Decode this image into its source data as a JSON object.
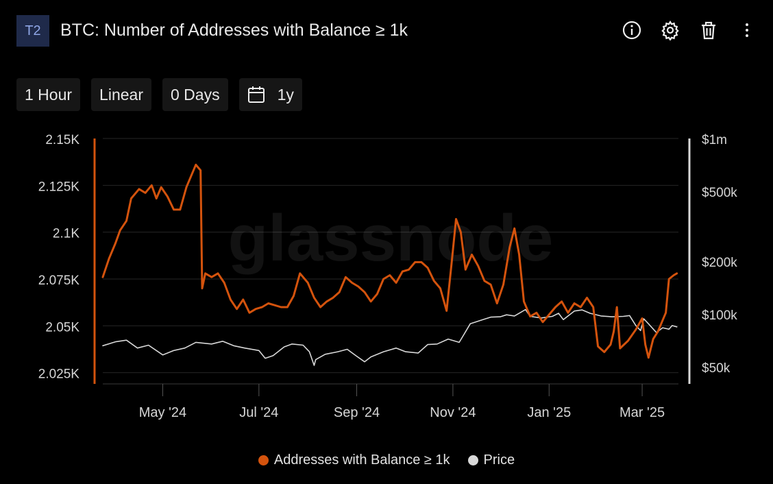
{
  "header": {
    "badge": "T2",
    "title": "BTC: Number of Addresses with Balance ≥ 1k",
    "icons": [
      "info-icon",
      "gear-icon",
      "trash-icon",
      "more-vertical-icon"
    ]
  },
  "toolbar": {
    "resolution": "1 Hour",
    "scale": "Linear",
    "moving_average": "0 Days",
    "range": "1y",
    "range_icon": "calendar-icon"
  },
  "colors": {
    "addresses": "#d4530d",
    "price": "#d8d8d8",
    "grid": "#262626",
    "background": "#000000"
  },
  "chart_data": {
    "type": "line",
    "title": "BTC: Number of Addresses with Balance ≥ 1k",
    "watermark": "glassnode",
    "x_ticks": [
      "May '24",
      "Jul '24",
      "Sep '24",
      "Nov '24",
      "Jan '25",
      "Mar '25"
    ],
    "x_range": [
      "2024-03-24",
      "2025-03-24"
    ],
    "y_left": {
      "ticks": [
        "2.15K",
        "2.125K",
        "2.1K",
        "2.075K",
        "2.05K",
        "2.025K"
      ],
      "range": [
        2019,
        2150
      ]
    },
    "y_right": {
      "scale": "log",
      "ticks": [
        "$1m",
        "$500k",
        "$200k",
        "$100k",
        "$50k"
      ],
      "range": [
        40000,
        1000000
      ]
    },
    "grid": true,
    "legend_position": "bottom",
    "series": [
      {
        "name": "Addresses with Balance ≥ 1k",
        "axis": "left",
        "points": [
          [
            "2024-03-24",
            2076
          ],
          [
            "2024-03-28",
            2086
          ],
          [
            "2024-04-01",
            2094
          ],
          [
            "2024-04-04",
            2101
          ],
          [
            "2024-04-08",
            2106
          ],
          [
            "2024-04-11",
            2118
          ],
          [
            "2024-04-16",
            2123
          ],
          [
            "2024-04-20",
            2121
          ],
          [
            "2024-04-24",
            2125
          ],
          [
            "2024-04-27",
            2118
          ],
          [
            "2024-04-30",
            2124
          ],
          [
            "2024-05-04",
            2119
          ],
          [
            "2024-05-08",
            2112
          ],
          [
            "2024-05-12",
            2112
          ],
          [
            "2024-05-16",
            2124
          ],
          [
            "2024-05-19",
            2130
          ],
          [
            "2024-05-22",
            2136
          ],
          [
            "2024-05-25",
            2133
          ],
          [
            "2024-05-26",
            2070
          ],
          [
            "2024-05-28",
            2078
          ],
          [
            "2024-06-01",
            2076
          ],
          [
            "2024-06-05",
            2078
          ],
          [
            "2024-06-09",
            2073
          ],
          [
            "2024-06-13",
            2064
          ],
          [
            "2024-06-17",
            2059
          ],
          [
            "2024-06-21",
            2064
          ],
          [
            "2024-06-25",
            2057
          ],
          [
            "2024-06-29",
            2059
          ],
          [
            "2024-07-03",
            2060
          ],
          [
            "2024-07-07",
            2062
          ],
          [
            "2024-07-11",
            2061
          ],
          [
            "2024-07-15",
            2060
          ],
          [
            "2024-07-19",
            2060
          ],
          [
            "2024-07-23",
            2066
          ],
          [
            "2024-07-27",
            2078
          ],
          [
            "2024-08-01",
            2073
          ],
          [
            "2024-08-05",
            2065
          ],
          [
            "2024-08-09",
            2060
          ],
          [
            "2024-08-13",
            2063
          ],
          [
            "2024-08-17",
            2065
          ],
          [
            "2024-08-21",
            2068
          ],
          [
            "2024-08-25",
            2076
          ],
          [
            "2024-08-29",
            2073
          ],
          [
            "2024-09-02",
            2071
          ],
          [
            "2024-09-06",
            2068
          ],
          [
            "2024-09-10",
            2063
          ],
          [
            "2024-09-14",
            2067
          ],
          [
            "2024-09-18",
            2075
          ],
          [
            "2024-09-22",
            2077
          ],
          [
            "2024-09-26",
            2073
          ],
          [
            "2024-09-30",
            2079
          ],
          [
            "2024-10-04",
            2080
          ],
          [
            "2024-10-08",
            2084
          ],
          [
            "2024-10-12",
            2084
          ],
          [
            "2024-10-16",
            2081
          ],
          [
            "2024-10-20",
            2074
          ],
          [
            "2024-10-24",
            2070
          ],
          [
            "2024-10-28",
            2058
          ],
          [
            "2024-10-31",
            2082
          ],
          [
            "2024-11-03",
            2107
          ],
          [
            "2024-11-06",
            2100
          ],
          [
            "2024-11-09",
            2080
          ],
          [
            "2024-11-13",
            2088
          ],
          [
            "2024-11-17",
            2082
          ],
          [
            "2024-11-21",
            2074
          ],
          [
            "2024-11-25",
            2072
          ],
          [
            "2024-11-29",
            2062
          ],
          [
            "2024-12-03",
            2072
          ],
          [
            "2024-12-07",
            2092
          ],
          [
            "2024-12-10",
            2102
          ],
          [
            "2024-12-13",
            2088
          ],
          [
            "2024-12-16",
            2063
          ],
          [
            "2024-12-20",
            2055
          ],
          [
            "2024-12-24",
            2057
          ],
          [
            "2024-12-28",
            2052
          ],
          [
            "2025-01-01",
            2056
          ],
          [
            "2025-01-05",
            2060
          ],
          [
            "2025-01-09",
            2063
          ],
          [
            "2025-01-13",
            2057
          ],
          [
            "2025-01-17",
            2062
          ],
          [
            "2025-01-21",
            2060
          ],
          [
            "2025-01-25",
            2065
          ],
          [
            "2025-01-29",
            2060
          ],
          [
            "2025-02-01",
            2039
          ],
          [
            "2025-02-05",
            2036
          ],
          [
            "2025-02-09",
            2040
          ],
          [
            "2025-02-11",
            2047
          ],
          [
            "2025-02-13",
            2060
          ],
          [
            "2025-02-15",
            2038
          ],
          [
            "2025-02-20",
            2042
          ],
          [
            "2025-02-25",
            2048
          ],
          [
            "2025-03-01",
            2054
          ],
          [
            "2025-03-03",
            2040
          ],
          [
            "2025-03-05",
            2033
          ],
          [
            "2025-03-08",
            2043
          ],
          [
            "2025-03-11",
            2047
          ],
          [
            "2025-03-14",
            2053
          ],
          [
            "2025-03-16",
            2057
          ],
          [
            "2025-03-18",
            2075
          ],
          [
            "2025-03-21",
            2077
          ],
          [
            "2025-03-23",
            2078
          ]
        ]
      },
      {
        "name": "Price",
        "axis": "right",
        "points": [
          [
            "2024-03-24",
            66000
          ],
          [
            "2024-04-01",
            69500
          ],
          [
            "2024-04-08",
            71000
          ],
          [
            "2024-04-15",
            64000
          ],
          [
            "2024-04-22",
            66500
          ],
          [
            "2024-05-01",
            58500
          ],
          [
            "2024-05-08",
            62000
          ],
          [
            "2024-05-15",
            64000
          ],
          [
            "2024-05-22",
            69000
          ],
          [
            "2024-06-01",
            67500
          ],
          [
            "2024-06-08",
            70000
          ],
          [
            "2024-06-15",
            66000
          ],
          [
            "2024-06-22",
            64000
          ],
          [
            "2024-07-01",
            62000
          ],
          [
            "2024-07-05",
            56000
          ],
          [
            "2024-07-10",
            58000
          ],
          [
            "2024-07-17",
            65000
          ],
          [
            "2024-07-22",
            67500
          ],
          [
            "2024-07-29",
            66500
          ],
          [
            "2024-08-02",
            61000
          ],
          [
            "2024-08-05",
            51000
          ],
          [
            "2024-08-06",
            55000
          ],
          [
            "2024-08-12",
            59000
          ],
          [
            "2024-08-20",
            61000
          ],
          [
            "2024-08-26",
            63000
          ],
          [
            "2024-09-01",
            57500
          ],
          [
            "2024-09-06",
            53500
          ],
          [
            "2024-09-10",
            57000
          ],
          [
            "2024-09-18",
            61000
          ],
          [
            "2024-09-26",
            64000
          ],
          [
            "2024-10-02",
            61000
          ],
          [
            "2024-10-10",
            60000
          ],
          [
            "2024-10-16",
            67000
          ],
          [
            "2024-10-22",
            67500
          ],
          [
            "2024-10-29",
            72000
          ],
          [
            "2024-11-05",
            69000
          ],
          [
            "2024-11-08",
            76500
          ],
          [
            "2024-11-12",
            88000
          ],
          [
            "2024-11-16",
            90500
          ],
          [
            "2024-11-20",
            93000
          ],
          [
            "2024-11-25",
            96000
          ],
          [
            "2024-12-01",
            96500
          ],
          [
            "2024-12-05",
            99000
          ],
          [
            "2024-12-10",
            97500
          ],
          [
            "2024-12-17",
            106000
          ],
          [
            "2024-12-20",
            97000
          ],
          [
            "2024-12-27",
            95000
          ],
          [
            "2025-01-03",
            97000
          ],
          [
            "2025-01-07",
            101000
          ],
          [
            "2025-01-10",
            93000
          ],
          [
            "2025-01-17",
            104000
          ],
          [
            "2025-01-22",
            105500
          ],
          [
            "2025-01-27",
            101000
          ],
          [
            "2025-02-03",
            97500
          ],
          [
            "2025-02-10",
            96500
          ],
          [
            "2025-02-17",
            97000
          ],
          [
            "2025-02-21",
            98000
          ],
          [
            "2025-02-25",
            86000
          ],
          [
            "2025-02-28",
            80500
          ],
          [
            "2025-03-02",
            94000
          ],
          [
            "2025-03-05",
            88000
          ],
          [
            "2025-03-10",
            78500
          ],
          [
            "2025-03-14",
            83500
          ],
          [
            "2025-03-18",
            82000
          ],
          [
            "2025-03-20",
            86000
          ],
          [
            "2025-03-23",
            84500
          ]
        ]
      }
    ]
  }
}
